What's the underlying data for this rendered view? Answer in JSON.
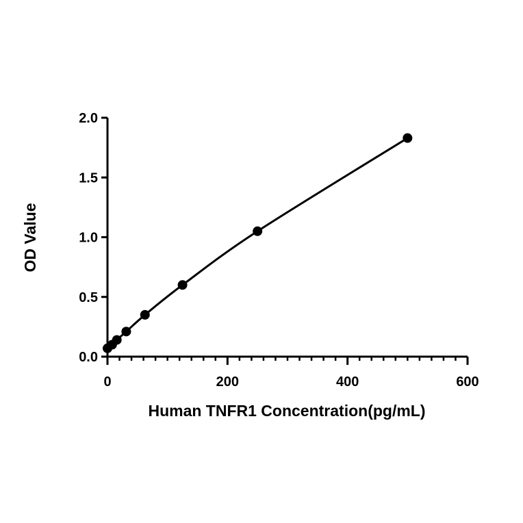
{
  "chart_data": {
    "type": "scatter",
    "title": "",
    "xlabel": "Human TNFR1 Concentration(pg/mL)",
    "ylabel": "OD Value",
    "xlim": [
      0,
      600
    ],
    "ylim": [
      0,
      2.0
    ],
    "x_ticks": [
      0,
      200,
      400,
      600
    ],
    "x_tick_labels": [
      "0",
      "200",
      "400",
      "600"
    ],
    "x_minor_step": 20,
    "y_ticks": [
      0,
      0.5,
      1.0,
      1.5,
      2.0
    ],
    "y_tick_labels": [
      "0.0",
      "0.5",
      "1.0",
      "1.5",
      "2.0"
    ],
    "grid": false,
    "legend": "none",
    "fit_line": true,
    "colors": {
      "marker": "#000000",
      "line": "#000000",
      "axis": "#000000"
    },
    "series": [
      {
        "x": [
          0,
          7.8,
          15.6,
          31.25,
          62.5,
          125,
          250,
          500
        ],
        "y": [
          0.07,
          0.1,
          0.14,
          0.21,
          0.35,
          0.6,
          1.05,
          1.83
        ]
      }
    ]
  }
}
